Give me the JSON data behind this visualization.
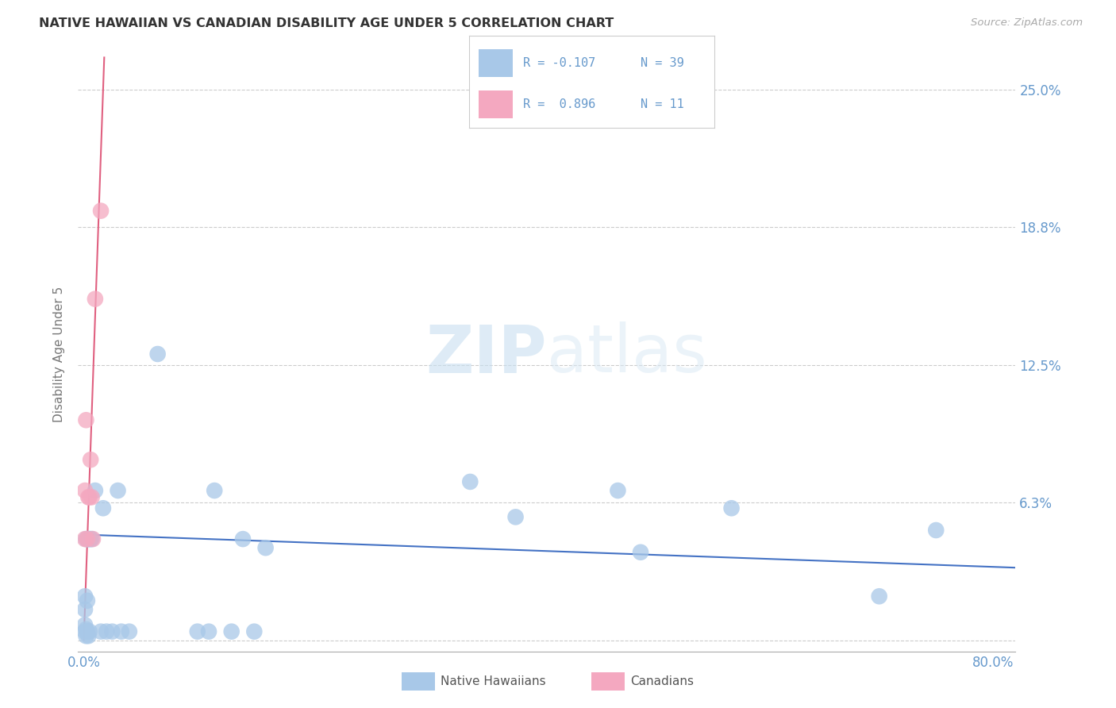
{
  "title": "NATIVE HAWAIIAN VS CANADIAN DISABILITY AGE UNDER 5 CORRELATION CHART",
  "source": "Source: ZipAtlas.com",
  "ylabel": "Disability Age Under 5",
  "watermark": "ZIPatlas",
  "xlim": [
    -0.005,
    0.82
  ],
  "ylim": [
    -0.005,
    0.265
  ],
  "yticks": [
    0.0,
    0.0625,
    0.125,
    0.1875,
    0.25
  ],
  "ytick_labels": [
    "",
    "6.3%",
    "12.5%",
    "18.8%",
    "25.0%"
  ],
  "xticks": [
    0.0,
    0.2,
    0.4,
    0.6,
    0.8
  ],
  "xtick_labels": [
    "0.0%",
    "",
    "",
    "",
    "80.0%"
  ],
  "blue_color": "#a8c8e8",
  "pink_color": "#f4a8c0",
  "trend_blue": "#4472c4",
  "trend_pink": "#e06080",
  "label_color": "#6699cc",
  "native_hawaiians_x": [
    0.001,
    0.001,
    0.001,
    0.001,
    0.002,
    0.002,
    0.002,
    0.003,
    0.003,
    0.003,
    0.004,
    0.004,
    0.005,
    0.005,
    0.006,
    0.007,
    0.01,
    0.015,
    0.017,
    0.02,
    0.025,
    0.03,
    0.033,
    0.04,
    0.065,
    0.1,
    0.11,
    0.115,
    0.13,
    0.14,
    0.15,
    0.16,
    0.34,
    0.38,
    0.47,
    0.49,
    0.57,
    0.7,
    0.75
  ],
  "native_hawaiians_y": [
    0.004,
    0.007,
    0.014,
    0.02,
    0.002,
    0.005,
    0.046,
    0.004,
    0.018,
    0.046,
    0.002,
    0.046,
    0.004,
    0.046,
    0.046,
    0.046,
    0.068,
    0.004,
    0.06,
    0.004,
    0.004,
    0.068,
    0.004,
    0.004,
    0.13,
    0.004,
    0.004,
    0.068,
    0.004,
    0.046,
    0.004,
    0.042,
    0.072,
    0.056,
    0.068,
    0.04,
    0.06,
    0.02,
    0.05
  ],
  "canadians_x": [
    0.001,
    0.001,
    0.002,
    0.003,
    0.004,
    0.005,
    0.006,
    0.007,
    0.008,
    0.01,
    0.015
  ],
  "canadians_y": [
    0.046,
    0.068,
    0.1,
    0.046,
    0.065,
    0.065,
    0.082,
    0.065,
    0.046,
    0.155,
    0.195
  ],
  "blue_trend_x": [
    0.0,
    0.82
  ],
  "blue_trend_y": [
    0.048,
    0.033
  ],
  "pink_trend_x": [
    0.0,
    0.018
  ],
  "pink_trend_y": [
    0.0,
    0.265
  ],
  "legend_r1": "R = -0.107",
  "legend_n1": "N = 39",
  "legend_r2": "R =  0.896",
  "legend_n2": "N = 11"
}
